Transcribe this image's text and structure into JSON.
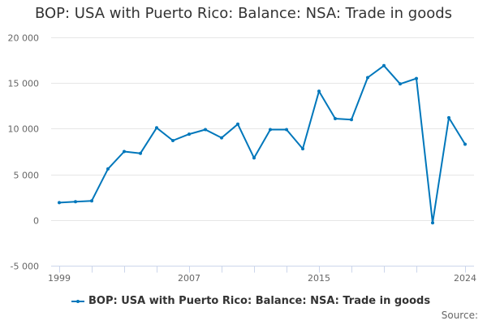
{
  "title": "BOP: USA with Puerto Rico: Balance: NSA: Trade in goods",
  "legend": {
    "label": "BOP: USA with Puerto Rico: Balance: NSA: Trade in goods"
  },
  "source_label": "Source:",
  "colors": {
    "series": "#0077bb",
    "grid": "#e6e6e6",
    "axis": "#ccd6eb",
    "text": "#333333",
    "tick_text": "#666666"
  },
  "chart_data": {
    "type": "line",
    "title": "BOP: USA with Puerto Rico: Balance: NSA: Trade in goods",
    "xlabel": "",
    "ylabel": "",
    "ylim": [
      -5000,
      20000
    ],
    "xlim": [
      1999,
      2024
    ],
    "yticks": [
      -5000,
      0,
      5000,
      10000,
      15000,
      20000
    ],
    "ytick_labels": [
      "-5 000",
      "0",
      "5 000",
      "10 000",
      "15 000",
      "20 000"
    ],
    "xtick_labels": [
      "1999",
      "2007",
      "2015",
      "2024"
    ],
    "grid": true,
    "legend_position": "bottom",
    "x": [
      1999,
      2000,
      2001,
      2002,
      2003,
      2004,
      2005,
      2006,
      2007,
      2008,
      2009,
      2010,
      2011,
      2012,
      2013,
      2014,
      2015,
      2016,
      2017,
      2018,
      2019,
      2020,
      2021,
      2022,
      2023,
      2024
    ],
    "series": [
      {
        "name": "BOP: USA with Puerto Rico: Balance: NSA: Trade in goods",
        "values": [
          1900,
          2000,
          2100,
          5600,
          7500,
          7300,
          10100,
          8700,
          9400,
          9900,
          9000,
          10500,
          6800,
          9900,
          9900,
          7800,
          14100,
          11100,
          11000,
          15600,
          16900,
          14900,
          15500,
          -300,
          11200,
          8300
        ]
      }
    ]
  }
}
